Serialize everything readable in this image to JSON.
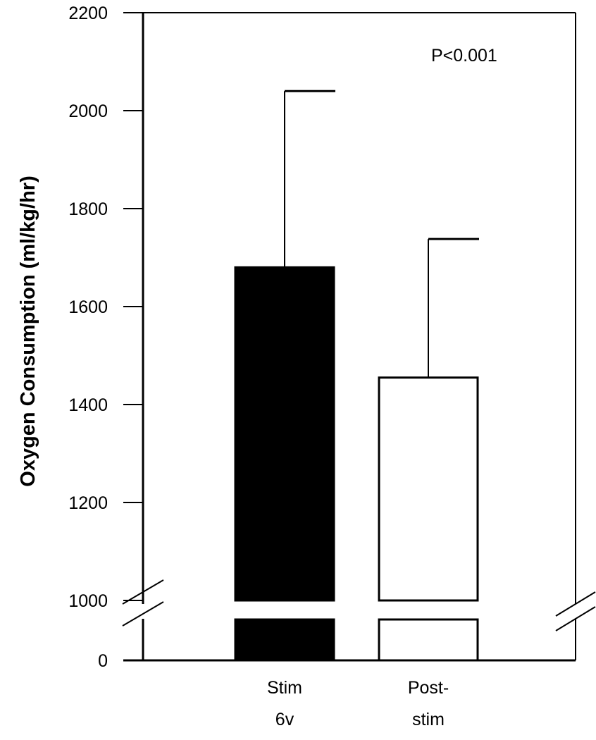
{
  "chart_data": {
    "type": "bar",
    "title": "",
    "xlabel": "",
    "ylabel": "Oxygen Consumption (ml/kg/hr)",
    "ylim": [
      1000,
      2200
    ],
    "y_axis_break": true,
    "y_ticks": [
      "0",
      "1000",
      "1200",
      "1400",
      "1600",
      "1800",
      "2000",
      "2200"
    ],
    "categories": [
      {
        "lines": [
          "Stim",
          "6v"
        ]
      },
      {
        "lines": [
          "Post-",
          "stim"
        ]
      }
    ],
    "values": [
      1680,
      1455
    ],
    "error_upper": [
      2040,
      1738
    ],
    "bar_colors": [
      "#000000",
      "#ffffff"
    ],
    "annotation": "P<0.001",
    "grid": false,
    "legend": "none"
  }
}
